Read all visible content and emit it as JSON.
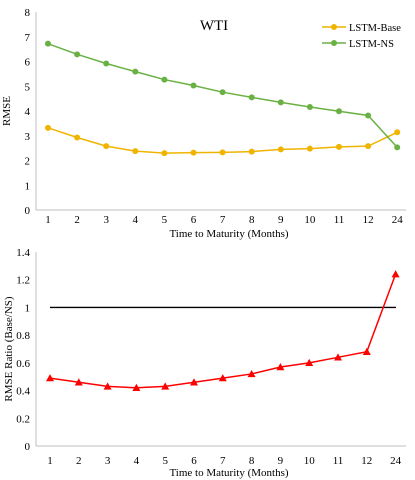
{
  "chart_data": [
    {
      "type": "line",
      "title": "WTI",
      "xlabel": "Time to Maturity (Months)",
      "ylabel": "RMSE",
      "categories": [
        "1",
        "2",
        "3",
        "4",
        "5",
        "6",
        "7",
        "8",
        "9",
        "10",
        "11",
        "12",
        "24"
      ],
      "ylim": [
        0,
        8
      ],
      "yticks": [
        "0",
        "1",
        "2",
        "3",
        "4",
        "5",
        "6",
        "7",
        "8"
      ],
      "grid": false,
      "legend": "top-right",
      "series": [
        {
          "name": "LSTM-Base",
          "color": "#F0B400",
          "marker": "circle",
          "values": [
            3.32,
            2.93,
            2.58,
            2.38,
            2.3,
            2.32,
            2.33,
            2.36,
            2.45,
            2.48,
            2.55,
            2.58,
            3.14
          ]
        },
        {
          "name": "LSTM-NS",
          "color": "#6AB144",
          "marker": "circle",
          "values": [
            6.72,
            6.29,
            5.92,
            5.59,
            5.27,
            5.03,
            4.76,
            4.55,
            4.35,
            4.16,
            3.99,
            3.82,
            2.53
          ]
        }
      ]
    },
    {
      "type": "line",
      "title": "",
      "xlabel": "Time to Maturity (Months)",
      "ylabel": "RMSE Ratio (Base/NS)",
      "categories": [
        "1",
        "2",
        "3",
        "4",
        "5",
        "6",
        "7",
        "8",
        "9",
        "10",
        "11",
        "12",
        "24"
      ],
      "ylim": [
        0,
        1.4
      ],
      "yticks": [
        "0",
        "0.2",
        "0.4",
        "0.6",
        "0.8",
        "1",
        "1.2",
        "1.4"
      ],
      "grid": false,
      "reference_line": {
        "y": 1,
        "color": "#000000"
      },
      "series": [
        {
          "name": "",
          "color": "#FF0000",
          "marker": "triangle",
          "values": [
            0.49,
            0.46,
            0.43,
            0.42,
            0.43,
            0.46,
            0.49,
            0.52,
            0.57,
            0.6,
            0.64,
            0.68,
            1.24
          ]
        }
      ]
    }
  ]
}
